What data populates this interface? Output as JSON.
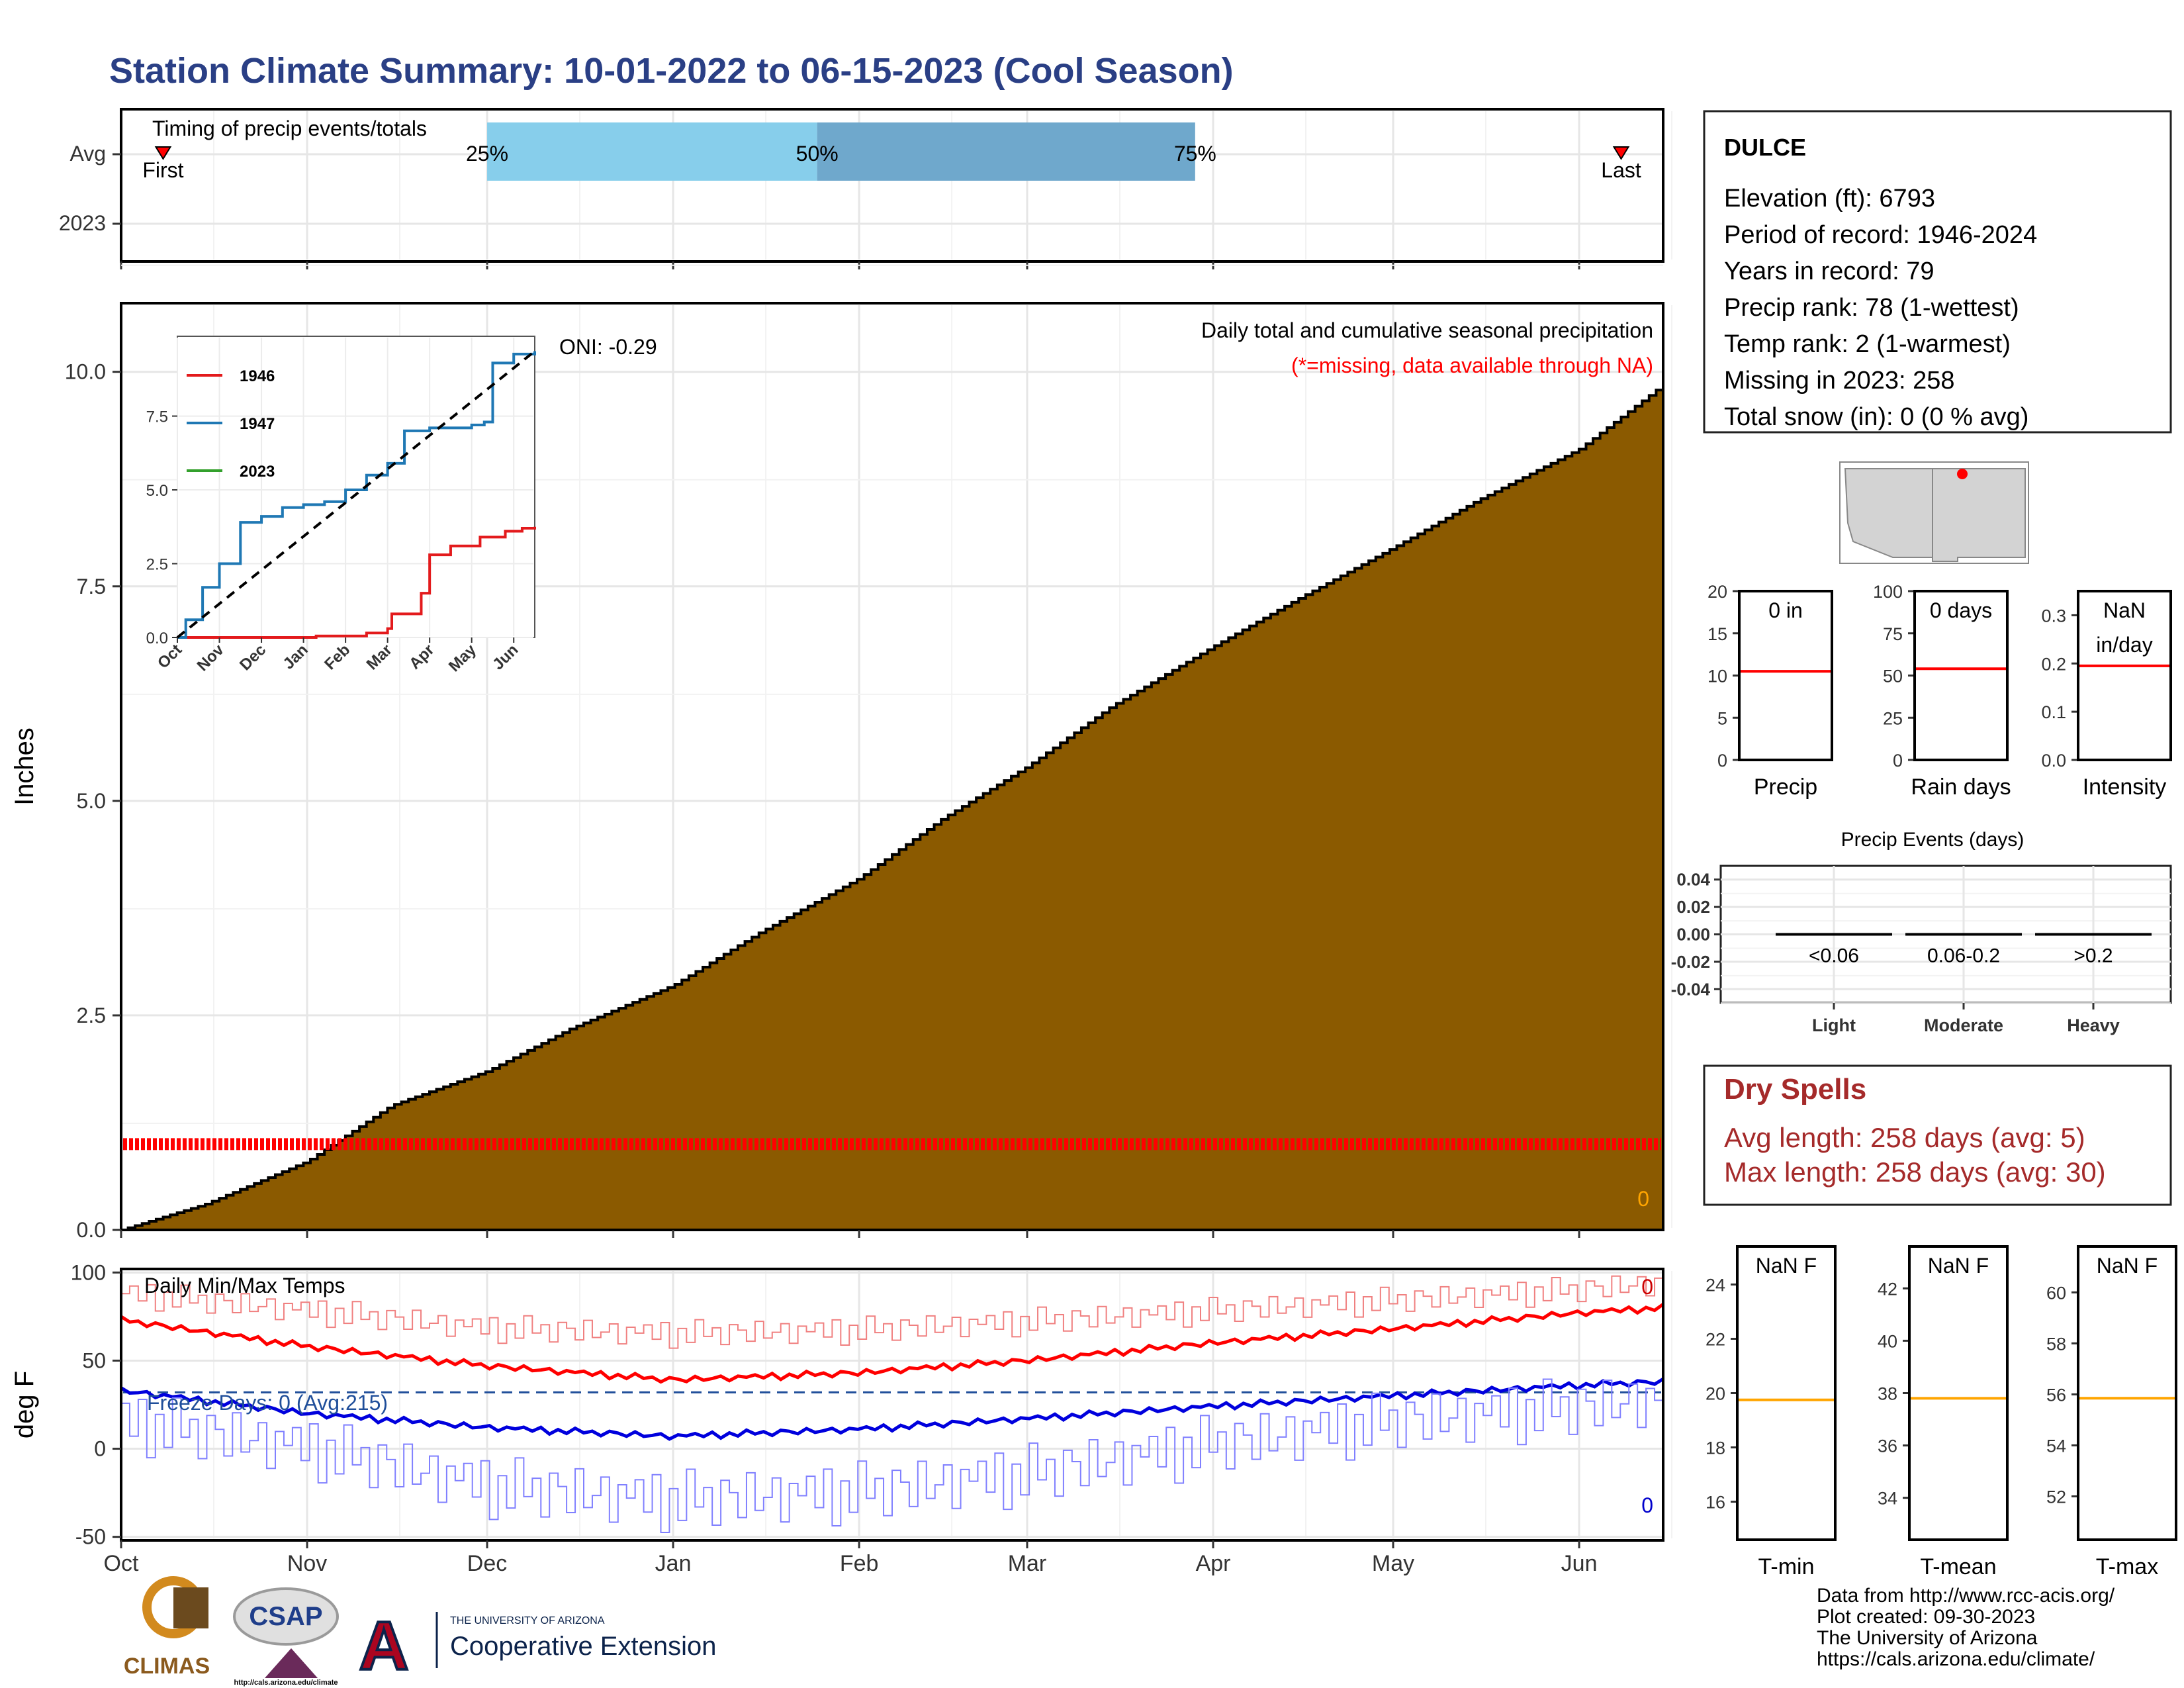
{
  "title": "Station Climate Summary: 10-01-2022 to 06-15-2023 (Cool Season)",
  "colors": {
    "title": "#2a3f85",
    "precip_fill": "#8b5a00",
    "missing": "#ff0000",
    "dry_spells": "#a52a2a",
    "quartile_light": "#87ceeb",
    "quartile_dark": "#6fa8cc"
  },
  "month_labels": [
    "Oct",
    "Nov",
    "Dec",
    "Jan",
    "Feb",
    "Mar",
    "Apr",
    "May",
    "Jun"
  ],
  "chart_data": [
    {
      "type": "timeline",
      "title": "Timing of precip events/totals",
      "rows": [
        "Avg",
        "2023"
      ],
      "markers": [
        {
          "label": "First",
          "date": "2022-10-08"
        },
        {
          "label": "Last",
          "date": "2023-06-08"
        }
      ],
      "quartiles": [
        {
          "label": "25%",
          "date": "2022-12-01"
        },
        {
          "label": "50%",
          "date": "2023-01-25"
        },
        {
          "label": "75%",
          "date": "2023-03-29"
        }
      ]
    },
    {
      "type": "area",
      "title": "Daily total and cumulative seasonal precipitation",
      "subtitle": "(*=missing, data available through NA)",
      "ylabel": "Inches",
      "ylim": [
        0,
        10.8
      ],
      "yticks": [
        "0.0",
        "2.5",
        "5.0",
        "7.5",
        "10.0"
      ],
      "xlim": [
        "2022-10-01",
        "2023-06-15"
      ],
      "oni_label": "ONI: -0.29",
      "daily_total_label": "0",
      "missing_marker_value": 1.0,
      "cumulative_points": [
        {
          "date": "2022-10-01",
          "value": 0.0
        },
        {
          "date": "2022-10-15",
          "value": 0.3
        },
        {
          "date": "2022-11-01",
          "value": 0.8
        },
        {
          "date": "2022-11-15",
          "value": 1.45
        },
        {
          "date": "2022-12-01",
          "value": 1.85
        },
        {
          "date": "2022-12-15",
          "value": 2.35
        },
        {
          "date": "2023-01-01",
          "value": 2.85
        },
        {
          "date": "2023-01-15",
          "value": 3.45
        },
        {
          "date": "2023-02-01",
          "value": 4.1
        },
        {
          "date": "2023-02-15",
          "value": 4.8
        },
        {
          "date": "2023-03-01",
          "value": 5.4
        },
        {
          "date": "2023-03-15",
          "value": 6.1
        },
        {
          "date": "2023-04-01",
          "value": 6.8
        },
        {
          "date": "2023-04-15",
          "value": 7.35
        },
        {
          "date": "2023-05-01",
          "value": 7.95
        },
        {
          "date": "2023-05-15",
          "value": 8.5
        },
        {
          "date": "2023-06-01",
          "value": 9.1
        },
        {
          "date": "2023-06-15",
          "value": 9.85
        }
      ]
    },
    {
      "type": "line",
      "title": "inset cumulative precipitation",
      "xticks": [
        "Oct",
        "Nov",
        "Dec",
        "Jan",
        "Feb",
        "Mar",
        "Apr",
        "May",
        "Jun"
      ],
      "yticks": [
        "0.0",
        "2.5",
        "5.0",
        "7.5"
      ],
      "ylim": [
        0,
        10
      ],
      "legend_position": "top-left",
      "series": [
        {
          "name": "1946",
          "color": "#e31a1c",
          "x": [
            0,
            3,
            3.3,
            4.5,
            5,
            5.1,
            5.8,
            6.0,
            6.5,
            7.2,
            7.8,
            8.2,
            8.5
          ],
          "y": [
            0,
            0,
            0.05,
            0.15,
            0.3,
            0.8,
            1.5,
            2.8,
            3.1,
            3.4,
            3.6,
            3.7,
            3.75
          ]
        },
        {
          "name": "1947",
          "color": "#1f78b4",
          "x": [
            0,
            0.2,
            0.6,
            1.0,
            1.5,
            2.0,
            2.5,
            3.0,
            3.5,
            4.0,
            4.5,
            5.0,
            5.4,
            6.0,
            6.5,
            7.0,
            7.3,
            7.5,
            8.0,
            8.5
          ],
          "y": [
            0,
            0.6,
            1.7,
            2.5,
            3.9,
            4.1,
            4.4,
            4.5,
            4.6,
            5.0,
            5.5,
            5.9,
            7.0,
            7.1,
            7.1,
            7.2,
            7.3,
            9.3,
            9.6,
            9.7
          ]
        },
        {
          "name": "2023",
          "color": "#33a02c",
          "x": [],
          "y": []
        },
        {
          "name": "",
          "color": "#000000",
          "dashed": true,
          "x": [
            0,
            8.5
          ],
          "y": [
            0,
            9.7
          ]
        }
      ]
    },
    {
      "type": "line",
      "title": "Daily Min/Max Temps",
      "ylabel": "deg F",
      "ylim": [
        -52,
        102
      ],
      "yticks": [
        "-50",
        "0",
        "50",
        "100"
      ],
      "freeze_line": 32,
      "freeze_label": "Freeze Days: 0 (Avg:215)",
      "max_count_label": "0",
      "min_count_label": "0",
      "series": [
        {
          "name": "record max",
          "color": "#f08080",
          "dates": [
            "2022-10-01",
            "2022-11-01",
            "2022-12-01",
            "2023-01-01",
            "2023-02-01",
            "2023-03-01",
            "2023-04-01",
            "2023-05-01",
            "2023-06-01",
            "2023-06-15"
          ],
          "values": [
            88,
            78,
            68,
            65,
            67,
            72,
            78,
            84,
            90,
            94
          ]
        },
        {
          "name": "avg max",
          "color": "#ff0000",
          "dates": [
            "2022-10-01",
            "2022-11-01",
            "2022-12-01",
            "2023-01-01",
            "2023-02-01",
            "2023-03-01",
            "2023-04-01",
            "2023-05-01",
            "2023-06-01",
            "2023-06-15"
          ],
          "values": [
            73,
            58,
            47,
            39,
            43,
            50,
            60,
            68,
            77,
            80
          ]
        },
        {
          "name": "avg min",
          "color": "#0000dd",
          "dates": [
            "2022-10-01",
            "2022-11-01",
            "2022-12-01",
            "2023-01-01",
            "2023-02-01",
            "2023-03-01",
            "2023-04-01",
            "2023-05-01",
            "2023-06-01",
            "2023-06-15"
          ],
          "values": [
            33,
            20,
            12,
            7,
            11,
            17,
            24,
            30,
            36,
            38
          ]
        },
        {
          "name": "record min",
          "color": "#8080ff",
          "dates": [
            "2022-10-01",
            "2022-11-01",
            "2022-12-01",
            "2023-01-01",
            "2023-02-01",
            "2023-03-01",
            "2023-04-01",
            "2023-05-01",
            "2023-06-01",
            "2023-06-15"
          ],
          "values": [
            15,
            0,
            -22,
            -30,
            -25,
            -15,
            2,
            15,
            23,
            28
          ]
        }
      ]
    },
    {
      "type": "bar",
      "panels": [
        {
          "label": "0 in",
          "xlabel": "Precip",
          "yticks": [
            "0",
            "5",
            "10",
            "15",
            "20"
          ],
          "ylim": [
            0,
            20
          ],
          "avg": 10.5
        },
        {
          "label": "0 days",
          "xlabel": "Rain days",
          "yticks": [
            "0",
            "25",
            "50",
            "75",
            "100"
          ],
          "ylim": [
            0,
            100
          ],
          "avg": 54
        },
        {
          "label": "NaN\nin/day",
          "xlabel": "Intensity",
          "yticks": [
            "0.0",
            "0.1",
            "0.2",
            "0.3"
          ],
          "ylim": [
            0,
            0.35
          ],
          "avg": 0.195
        }
      ]
    },
    {
      "type": "bar",
      "title": "Precip Events (days)",
      "categories": [
        "Light",
        "Moderate",
        "Heavy"
      ],
      "ranges": [
        "<0.06",
        "0.06-0.2",
        ">0.2"
      ],
      "values": [
        0,
        0,
        0
      ],
      "yticks": [
        "-0.04",
        "-0.02",
        "0.00",
        "0.02",
        "0.04"
      ],
      "ylim": [
        -0.05,
        0.05
      ]
    },
    {
      "type": "bar",
      "panels": [
        {
          "label": "NaN F",
          "xlabel": "T-min",
          "yticks": [
            "16",
            "18",
            "20",
            "22",
            "24"
          ],
          "ylim": [
            14.6,
            25.4
          ],
          "avg": 19.75
        },
        {
          "label": "NaN F",
          "xlabel": "T-mean",
          "yticks": [
            "34",
            "36",
            "38",
            "40",
            "42"
          ],
          "ylim": [
            32.4,
            43.6
          ],
          "avg": 37.8
        },
        {
          "label": "NaN F",
          "xlabel": "T-max",
          "yticks": [
            "52",
            "54",
            "56",
            "58",
            "60"
          ],
          "ylim": [
            50.3,
            61.8
          ],
          "avg": 55.85
        }
      ]
    }
  ],
  "station": {
    "name": "DULCE",
    "lines": [
      "Elevation (ft): 6793",
      "Period of record: 1946-2024",
      "Years in record: 79",
      "Precip rank: 78 (1-wettest)",
      "Temp rank: 2 (1-warmest)",
      "Missing in 2023: 258",
      "Total snow (in): 0 (0 % avg)"
    ]
  },
  "dry_spells": {
    "title": "Dry Spells",
    "avg": "Avg length: 258 days (avg: 5)",
    "max": "Max length: 258 days (avg: 30)"
  },
  "footer": {
    "credits": [
      "Data from http://www.rcc-acis.org/",
      "Plot created: 09-30-2023",
      "The University of Arizona",
      "https://cals.arizona.edu/climate/"
    ],
    "logos": {
      "climas": "CLIMAS",
      "csap": "CSAP",
      "csap_url": "http://cals.arizona.edu/climate",
      "ua_small": "THE UNIVERSITY OF ARIZONA",
      "ua_large": "Cooperative Extension"
    }
  }
}
